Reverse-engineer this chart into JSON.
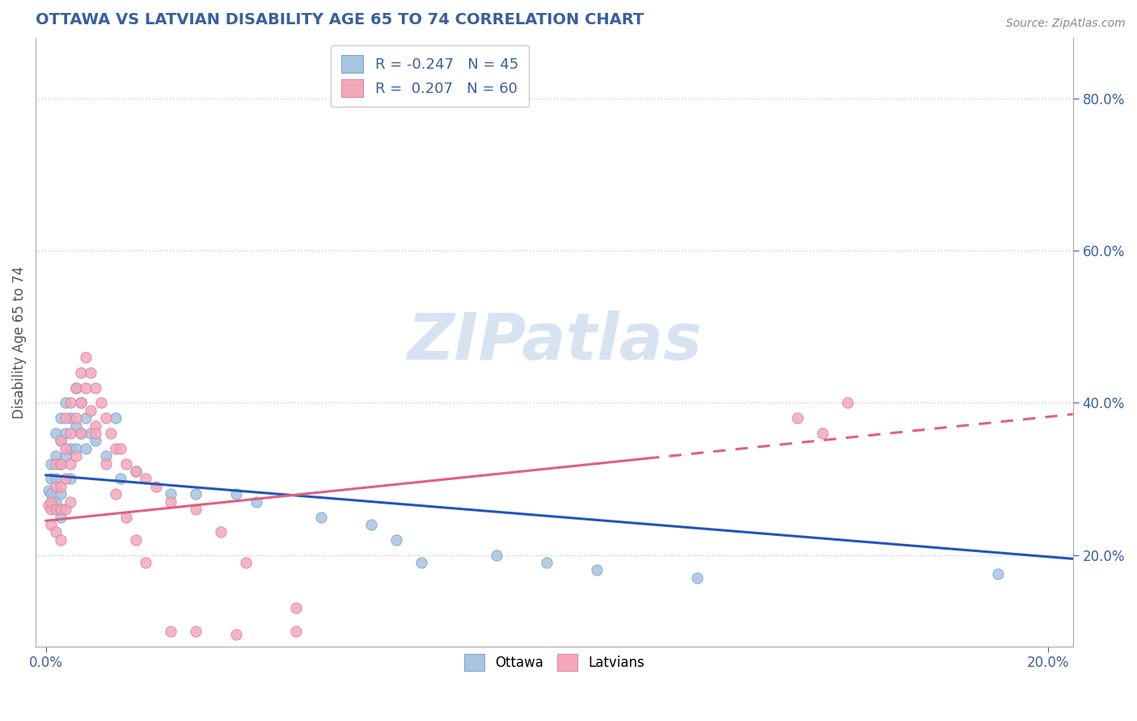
{
  "title": "OTTAWA VS LATVIAN DISABILITY AGE 65 TO 74 CORRELATION CHART",
  "source_text": "Source: ZipAtlas.com",
  "ylabel": "Disability Age 65 to 74",
  "xlim": [
    -0.002,
    0.205
  ],
  "ylim": [
    0.08,
    0.88
  ],
  "ytick_values": [
    0.2,
    0.4,
    0.6,
    0.8
  ],
  "xtick_values": [
    0.0,
    0.2
  ],
  "title_color": "#3a5fa0",
  "watermark_text": "ZIPatlas",
  "ottawa_color": "#aac4e0",
  "ottawa_edge_color": "#7aaad0",
  "latvian_color": "#f4a8bc",
  "latvian_edge_color": "#d888a0",
  "ottawa_line_color": "#2255bb",
  "latvian_line_color": "#e06080",
  "ottawa_x": [
    0.0005,
    0.001,
    0.001,
    0.001,
    0.002,
    0.002,
    0.002,
    0.002,
    0.003,
    0.003,
    0.003,
    0.003,
    0.003,
    0.004,
    0.004,
    0.004,
    0.005,
    0.005,
    0.005,
    0.006,
    0.006,
    0.006,
    0.007,
    0.007,
    0.008,
    0.008,
    0.009,
    0.01,
    0.012,
    0.014,
    0.015,
    0.018,
    0.025,
    0.03,
    0.038,
    0.042,
    0.055,
    0.065,
    0.07,
    0.075,
    0.09,
    0.1,
    0.11,
    0.13,
    0.19
  ],
  "ottawa_y": [
    0.285,
    0.3,
    0.32,
    0.28,
    0.36,
    0.33,
    0.3,
    0.27,
    0.38,
    0.35,
    0.32,
    0.28,
    0.25,
    0.4,
    0.36,
    0.33,
    0.38,
    0.34,
    0.3,
    0.42,
    0.37,
    0.34,
    0.4,
    0.36,
    0.38,
    0.34,
    0.36,
    0.35,
    0.33,
    0.38,
    0.3,
    0.31,
    0.28,
    0.28,
    0.28,
    0.27,
    0.25,
    0.24,
    0.22,
    0.19,
    0.2,
    0.19,
    0.18,
    0.17,
    0.175
  ],
  "latvian_x": [
    0.0005,
    0.001,
    0.001,
    0.001,
    0.002,
    0.002,
    0.002,
    0.002,
    0.003,
    0.003,
    0.003,
    0.003,
    0.003,
    0.004,
    0.004,
    0.004,
    0.004,
    0.005,
    0.005,
    0.005,
    0.005,
    0.006,
    0.006,
    0.006,
    0.007,
    0.007,
    0.007,
    0.008,
    0.008,
    0.009,
    0.009,
    0.01,
    0.01,
    0.011,
    0.012,
    0.013,
    0.014,
    0.015,
    0.016,
    0.018,
    0.02,
    0.022,
    0.025,
    0.03,
    0.035,
    0.04,
    0.05,
    0.01,
    0.012,
    0.014,
    0.016,
    0.018,
    0.02,
    0.025,
    0.03,
    0.038,
    0.05,
    0.15,
    0.155,
    0.16
  ],
  "latvian_y": [
    0.265,
    0.26,
    0.27,
    0.24,
    0.32,
    0.29,
    0.26,
    0.23,
    0.35,
    0.32,
    0.29,
    0.26,
    0.22,
    0.38,
    0.34,
    0.3,
    0.26,
    0.4,
    0.36,
    0.32,
    0.27,
    0.42,
    0.38,
    0.33,
    0.44,
    0.4,
    0.36,
    0.46,
    0.42,
    0.44,
    0.39,
    0.42,
    0.37,
    0.4,
    0.38,
    0.36,
    0.34,
    0.34,
    0.32,
    0.31,
    0.3,
    0.29,
    0.27,
    0.26,
    0.23,
    0.19,
    0.13,
    0.36,
    0.32,
    0.28,
    0.25,
    0.22,
    0.19,
    0.1,
    0.1,
    0.095,
    0.1,
    0.38,
    0.36,
    0.4
  ],
  "ottawa_trend_x": [
    0.0,
    0.205
  ],
  "ottawa_trend_y": [
    0.305,
    0.195
  ],
  "latvian_trend_x": [
    0.0,
    0.205
  ],
  "latvian_trend_y": [
    0.245,
    0.385
  ]
}
